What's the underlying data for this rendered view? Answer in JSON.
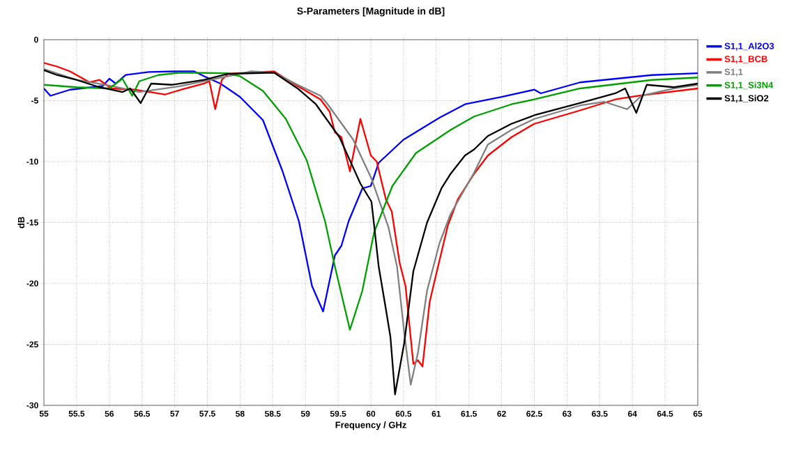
{
  "chart_data": {
    "type": "line",
    "title": "S-Parameters [Magnitude in dB]",
    "xlabel": "Frequency / GHz",
    "ylabel": "dB",
    "xlim": [
      55,
      65
    ],
    "ylim": [
      -30,
      0
    ],
    "xticks": [
      55,
      55.5,
      56,
      56.5,
      57,
      57.5,
      58,
      58.5,
      59,
      59.5,
      60,
      60.5,
      61,
      61.5,
      62,
      62.5,
      63,
      63.5,
      64,
      64.5,
      65
    ],
    "yticks": [
      -30,
      -25,
      -20,
      -15,
      -10,
      -5,
      0
    ],
    "grid": true,
    "legend": "right",
    "series": [
      {
        "name": "S1,1_Al2O3",
        "color": "#0000ff",
        "x": [
          55.0,
          55.1,
          55.4,
          55.9,
          56.0,
          56.1,
          56.25,
          56.6,
          57.0,
          57.3,
          57.45,
          57.7,
          58.0,
          58.35,
          58.65,
          58.9,
          59.1,
          59.27,
          59.45,
          59.55,
          59.66,
          59.87,
          60.0,
          60.12,
          60.5,
          61.05,
          61.44,
          62.0,
          62.5,
          62.6,
          63.2,
          64.3,
          65.0
        ],
        "values": [
          -4.0,
          -4.6,
          -4.1,
          -3.8,
          -3.2,
          -3.6,
          -2.9,
          -2.65,
          -2.6,
          -2.6,
          -3.0,
          -3.6,
          -4.7,
          -6.6,
          -10.8,
          -14.9,
          -20.2,
          -22.3,
          -17.7,
          -16.9,
          -14.9,
          -12.2,
          -12.0,
          -10.1,
          -8.2,
          -6.4,
          -5.3,
          -4.7,
          -4.1,
          -4.4,
          -3.5,
          -2.9,
          -2.75
        ]
      },
      {
        "name": "S1,1_BCB",
        "color": "#ff0000",
        "x": [
          55.0,
          55.2,
          55.4,
          55.7,
          55.85,
          56.03,
          56.39,
          56.85,
          57.1,
          57.45,
          57.53,
          57.62,
          57.72,
          57.82,
          58.52,
          58.88,
          59.23,
          59.37,
          59.45,
          59.55,
          59.68,
          59.84,
          60.0,
          60.09,
          60.23,
          60.32,
          60.44,
          60.53,
          60.65,
          60.72,
          60.79,
          60.9,
          61.01,
          61.18,
          61.33,
          61.58,
          61.79,
          62.15,
          62.5,
          63.2,
          63.74,
          64.1,
          65.0
        ],
        "values": [
          -1.9,
          -2.2,
          -2.6,
          -3.5,
          -3.3,
          -4.0,
          -4.1,
          -4.5,
          -4.1,
          -3.6,
          -3.4,
          -5.7,
          -3.3,
          -2.8,
          -2.6,
          -3.8,
          -4.9,
          -5.9,
          -7.6,
          -8.0,
          -10.8,
          -6.5,
          -9.5,
          -10.0,
          -13.1,
          -14.1,
          -18.3,
          -20.2,
          -26.6,
          -26.3,
          -26.8,
          -21.5,
          -19.0,
          -15.2,
          -13.1,
          -11.0,
          -9.5,
          -8.0,
          -6.9,
          -5.8,
          -4.9,
          -4.6,
          -4.0
        ]
      },
      {
        "name": "S1,1",
        "color": "#808080",
        "x": [
          55.0,
          55.5,
          56.03,
          56.46,
          57.1,
          57.82,
          58.17,
          58.52,
          58.88,
          59.23,
          59.34,
          59.73,
          60.01,
          60.27,
          60.4,
          60.51,
          60.61,
          60.72,
          60.86,
          61.05,
          61.22,
          61.58,
          61.79,
          62.15,
          62.5,
          63.2,
          63.57,
          63.92,
          64.14,
          64.64,
          65.0
        ],
        "values": [
          -2.4,
          -3.3,
          -3.8,
          -4.3,
          -3.8,
          -3.0,
          -2.6,
          -2.7,
          -3.7,
          -4.6,
          -5.3,
          -8.2,
          -11.4,
          -15.4,
          -18.6,
          -24.0,
          -28.3,
          -25.7,
          -20.6,
          -16.7,
          -14.3,
          -10.9,
          -8.6,
          -7.4,
          -6.5,
          -5.4,
          -5.1,
          -5.7,
          -4.6,
          -4.0,
          -3.7
        ]
      },
      {
        "name": "S1,1_Si3N4",
        "color": "#00a000",
        "x": [
          55.0,
          55.5,
          56.0,
          56.1,
          56.2,
          56.35,
          56.46,
          56.75,
          57.1,
          57.8,
          58.0,
          58.35,
          58.7,
          59.02,
          59.3,
          59.45,
          59.68,
          59.87,
          60.05,
          60.33,
          60.69,
          61.22,
          61.58,
          62.15,
          62.5,
          63.2,
          64.3,
          65.0
        ],
        "values": [
          -3.7,
          -3.9,
          -4.0,
          -3.6,
          -3.2,
          -4.6,
          -3.4,
          -2.9,
          -2.7,
          -2.75,
          -3.0,
          -4.2,
          -6.5,
          -9.9,
          -14.9,
          -18.6,
          -23.8,
          -20.6,
          -15.8,
          -12.0,
          -9.3,
          -7.4,
          -6.3,
          -5.3,
          -4.9,
          -4.0,
          -3.3,
          -3.1
        ]
      },
      {
        "name": "S1,1_SiO2",
        "color": "#000000",
        "x": [
          55.0,
          55.2,
          55.5,
          55.85,
          56.2,
          56.32,
          56.48,
          56.64,
          56.96,
          57.45,
          57.82,
          58.52,
          58.88,
          59.16,
          59.52,
          59.84,
          60.01,
          60.12,
          60.23,
          60.3,
          60.37,
          60.51,
          60.65,
          60.86,
          61.08,
          61.22,
          61.44,
          61.58,
          61.79,
          62.15,
          62.5,
          63.2,
          63.74,
          63.89,
          64.06,
          64.22,
          64.64,
          65.0
        ],
        "values": [
          -2.5,
          -2.9,
          -3.3,
          -3.9,
          -4.3,
          -4.0,
          -5.2,
          -3.6,
          -3.7,
          -3.3,
          -2.8,
          -2.7,
          -4.0,
          -5.3,
          -8.0,
          -11.8,
          -13.3,
          -18.6,
          -22.1,
          -24.4,
          -29.1,
          -24.9,
          -19.0,
          -15.0,
          -12.2,
          -11.0,
          -9.5,
          -9.0,
          -7.9,
          -6.9,
          -6.2,
          -5.2,
          -4.4,
          -4.0,
          -6.0,
          -3.7,
          -3.9,
          -3.6
        ]
      }
    ]
  }
}
